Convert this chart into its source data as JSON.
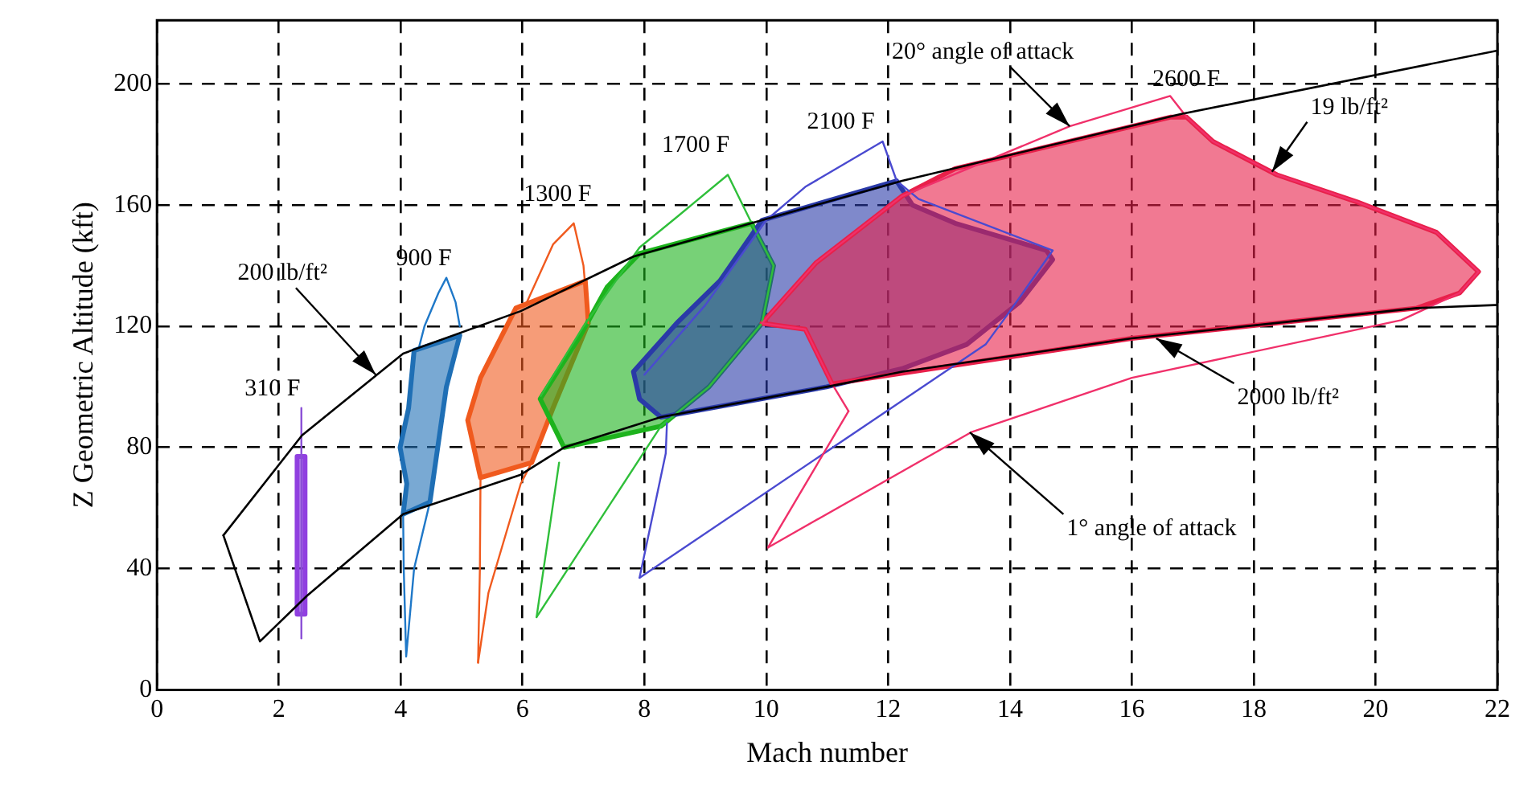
{
  "chart_data": {
    "type": "line",
    "xlabel": "Mach number",
    "ylabel": "Z Geometric Altitude (kft)",
    "xlim": [
      0,
      22
    ],
    "ylim": [
      0,
      221
    ],
    "xticks": [
      0,
      2,
      4,
      6,
      8,
      10,
      12,
      14,
      16,
      18,
      20,
      22
    ],
    "yticks": [
      0,
      40,
      80,
      120,
      160,
      200
    ],
    "grid": true,
    "marker": "none",
    "legend": false,
    "series": [
      {
        "name": "310 F",
        "color": "#8a4fd6",
        "x": [
          2.37,
          2.37
        ],
        "values": [
          93,
          17
        ]
      },
      {
        "name": "900 F",
        "color": "#1f78c8",
        "x": [
          4.3,
          4.39,
          4.62,
          4.75,
          4.9,
          4.97
        ],
        "values": [
          113,
          120,
          131,
          136,
          128,
          120
        ]
      },
      {
        "color": "#1f78c8",
        "x": [
          4.04,
          4.05,
          4.09,
          4.22,
          4.48
        ],
        "values": [
          58,
          40,
          11,
          40,
          62
        ]
      },
      {
        "name": "1300 F",
        "color": "#f05a1e",
        "x": [
          6.05,
          6.5,
          6.84,
          7.0,
          7.08
        ],
        "values": [
          127,
          147,
          154,
          140,
          121
        ]
      },
      {
        "color": "#f05a1e",
        "x": [
          5.27,
          5.3,
          5.31
        ],
        "values": [
          9,
          40,
          70
        ]
      },
      {
        "color": "#f05a1e",
        "x": [
          5.27,
          5.44,
          5.97,
          6.15
        ],
        "values": [
          9,
          32,
          68,
          75
        ]
      },
      {
        "name": "1700 F",
        "color": "#2fbf3a",
        "x": [
          6.3,
          7.0,
          7.92,
          8.53,
          9.37,
          9.76,
          10.12
        ],
        "values": [
          97,
          120,
          146,
          156,
          170,
          154,
          140
        ]
      },
      {
        "color": "#2fbf3a",
        "x": [
          6.23,
          8.27,
          9.06,
          9.93,
          10.12
        ],
        "values": [
          24,
          87,
          100,
          121,
          140
        ]
      },
      {
        "color": "#2fbf3a",
        "x": [
          6.23,
          6.6
        ],
        "values": [
          24,
          75
        ]
      },
      {
        "name": "2100 F",
        "color": "#4a4ad0",
        "x": [
          8.0,
          9.0,
          10.0,
          10.64,
          11.91,
          12.14,
          12.5,
          14.7
        ],
        "values": [
          104,
          127,
          155,
          166,
          181,
          168,
          162,
          145
        ]
      },
      {
        "color": "#4a4ad0",
        "x": [
          7.92,
          13.6,
          14.0,
          14.7
        ],
        "values": [
          37,
          114,
          125,
          145
        ]
      },
      {
        "color": "#4a4ad0",
        "x": [
          7.92,
          8.35,
          8.37
        ],
        "values": [
          37,
          78,
          88
        ]
      },
      {
        "name": "2600 F",
        "color": "#f0306a",
        "x": [
          9.93,
          10.82,
          12.23,
          14.98,
          16.63,
          16.9,
          17.33,
          18.38,
          19.7,
          21.0,
          21.69
        ],
        "values": [
          121,
          141,
          163,
          186,
          196,
          189,
          181,
          170,
          161,
          151,
          138
        ]
      },
      {
        "color": "#f0306a",
        "x": [
          10.03,
          13.36,
          16.0,
          20.42,
          21.38,
          21.69
        ],
        "values": [
          47,
          85,
          103,
          122,
          131,
          138
        ]
      },
      {
        "color": "#f0306a",
        "x": [
          10.03,
          11.35
        ],
        "values": [
          47,
          92
        ]
      },
      {
        "color": "#f0306a",
        "x": [
          9.93,
          10.64,
          11.08,
          11.35
        ],
        "values": [
          121,
          119,
          101,
          92
        ]
      },
      {
        "type": "area",
        "color": "#9040e0",
        "x": [
          2.3,
          2.43,
          2.43,
          2.3
        ],
        "values": [
          77,
          77,
          25,
          25
        ]
      },
      {
        "type": "area",
        "color": "#1f6fb5",
        "x": [
          4.22,
          4.97,
          4.75,
          4.48,
          4.04,
          4.1,
          3.99,
          4.13
        ],
        "values": [
          112,
          117,
          100,
          62,
          58,
          68,
          80,
          93
        ]
      },
      {
        "type": "area",
        "color": "#f05a1e",
        "x": [
          5.89,
          7.03,
          7.08,
          6.5,
          6.15,
          5.31,
          5.1,
          5.31
        ],
        "values": [
          126,
          135,
          121,
          93,
          75,
          70,
          89,
          103
        ]
      },
      {
        "type": "area",
        "color": "#1db31d",
        "x": [
          7.92,
          9.76,
          10.12,
          9.93,
          9.06,
          8.27,
          6.68,
          6.29,
          6.95,
          7.39
        ],
        "values": [
          144,
          154,
          140,
          121,
          100,
          87,
          80,
          96,
          117,
          133
        ]
      },
      {
        "type": "area",
        "color": "#2a3aa8",
        "x": [
          9.93,
          12.14,
          12.4,
          13.1,
          14.6,
          14.7,
          14.16,
          13.29,
          12.23,
          10.99,
          8.27,
          7.92,
          7.82,
          8.53,
          9.24
        ],
        "values": [
          155,
          168,
          160,
          154,
          145,
          142,
          128,
          114,
          106,
          100,
          90,
          96,
          105,
          121,
          135
        ]
      },
      {
        "type": "area",
        "color": "#e8204a",
        "x": [
          12.23,
          13.1,
          16.63,
          16.9,
          17.33,
          18.38,
          19.7,
          21.0,
          21.69,
          21.38,
          20.68,
          16.0,
          11.08,
          10.64,
          9.93,
          10.82
        ],
        "values": [
          163,
          172,
          189,
          189,
          181,
          170,
          161,
          151,
          138,
          131,
          126,
          116,
          101,
          119,
          121,
          141
        ]
      },
      {
        "color": "#000000",
        "x": [
          1.09,
          1.69,
          2.46,
          4.04,
          5.97,
          6.68,
          8.27,
          10.99,
          12.23,
          16.0,
          20.68,
          21.95,
          22
        ],
        "values": [
          51,
          16,
          31,
          58,
          71,
          80,
          90,
          100,
          105,
          116,
          126,
          127,
          127
        ]
      },
      {
        "color": "#000000",
        "x": [
          1.09,
          2.38,
          4.04,
          5.97,
          7.82,
          9.93,
          12.23,
          16.8,
          22
        ],
        "values": [
          51,
          84,
          111,
          125,
          143,
          155,
          168,
          190,
          211
        ]
      },
      {
        "color": "#000000",
        "x": [
          22,
          22
        ],
        "values": [
          127,
          211
        ]
      }
    ],
    "annotations": [
      {
        "text": "200 lb/ft²",
        "x": 3.59,
        "y": 104
      },
      {
        "text": "20° angle of attack",
        "x": 14.98,
        "y": 186
      },
      {
        "text": "19 lb/ft²",
        "x": 18.3,
        "y": 171
      },
      {
        "text": "2000 lb/ft²",
        "x": 16.4,
        "y": 116
      },
      {
        "text": "1° angle of attack",
        "x": 13.34,
        "y": 85
      }
    ]
  }
}
